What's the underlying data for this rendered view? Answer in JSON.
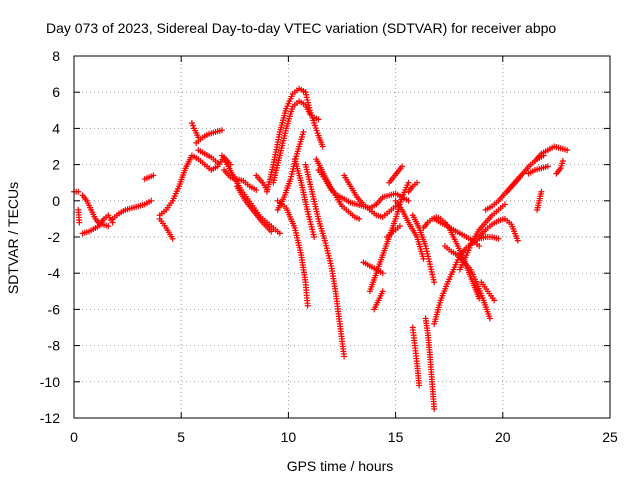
{
  "chart_data": {
    "type": "scatter",
    "title": "Day 073 of 2023, Sidereal Day-to-day VTEC variation (SDTVAR) for receiver abpo",
    "xlabel": "GPS time / hours",
    "ylabel": "SDTVAR / TECUs",
    "xlim": [
      0,
      25
    ],
    "ylim": [
      -12,
      8
    ],
    "x_ticks": [
      0,
      5,
      10,
      15,
      20,
      25
    ],
    "y_ticks": [
      -12,
      -10,
      -8,
      -6,
      -4,
      -2,
      0,
      2,
      4,
      6,
      8
    ],
    "grid": true,
    "marker": "+",
    "color": "#ff0000",
    "segments": [
      {
        "x": [
          0.0,
          0.2
        ],
        "y": [
          0.5,
          0.5
        ]
      },
      {
        "x": [
          0.2,
          0.25
        ],
        "y": [
          -0.5,
          -1.2
        ]
      },
      {
        "x": [
          0.4,
          0.6,
          0.8,
          1.0,
          1.2,
          1.4,
          1.6,
          1.8
        ],
        "y": [
          0.3,
          0.0,
          -0.5,
          -1.0,
          -1.3,
          -1.0,
          -0.8,
          -1.2
        ]
      },
      {
        "x": [
          0.4,
          0.7,
          1.0,
          1.3,
          1.6
        ],
        "y": [
          -1.8,
          -1.7,
          -1.5,
          -1.3,
          -1.4
        ]
      },
      {
        "x": [
          1.8,
          2.1,
          2.4,
          2.7,
          3.0,
          3.3,
          3.6
        ],
        "y": [
          -1.0,
          -0.7,
          -0.5,
          -0.4,
          -0.3,
          -0.2,
          0.0
        ]
      },
      {
        "x": [
          3.3,
          3.5,
          3.7
        ],
        "y": [
          1.2,
          1.3,
          1.4
        ]
      },
      {
        "x": [
          4.0,
          4.3,
          4.6
        ],
        "y": [
          -1.0,
          -1.5,
          -2.1
        ]
      },
      {
        "x": [
          4.0,
          4.3,
          4.6,
          4.9,
          5.2,
          5.5,
          5.8,
          6.1,
          6.4,
          6.7,
          7.0,
          7.3
        ],
        "y": [
          -0.8,
          -0.5,
          0.0,
          0.8,
          1.8,
          2.5,
          2.3,
          2.0,
          1.7,
          1.9,
          2.4,
          2.0
        ]
      },
      {
        "x": [
          5.5,
          5.6,
          5.8
        ],
        "y": [
          4.3,
          4.0,
          3.5
        ]
      },
      {
        "x": [
          5.7,
          6.0,
          6.3,
          6.6,
          6.9
        ],
        "y": [
          3.2,
          3.5,
          3.7,
          3.8,
          3.9
        ]
      },
      {
        "x": [
          5.8,
          6.1,
          6.4,
          6.7
        ],
        "y": [
          2.8,
          2.6,
          2.4,
          2.1
        ]
      },
      {
        "x": [
          6.9,
          7.2,
          7.5,
          7.8,
          8.1,
          8.4,
          8.7,
          9.0,
          9.3,
          9.6
        ],
        "y": [
          2.5,
          1.9,
          1.2,
          0.6,
          0.1,
          -0.4,
          -0.9,
          -1.2,
          -1.5,
          -1.8
        ]
      },
      {
        "x": [
          7.0,
          7.3,
          7.6,
          7.9,
          8.2,
          8.5
        ],
        "y": [
          1.7,
          1.3,
          1.2,
          1.1,
          0.8,
          0.6
        ]
      },
      {
        "x": [
          7.6,
          8.0,
          8.4,
          8.8,
          9.2
        ],
        "y": [
          0.8,
          0.0,
          -0.6,
          -1.2,
          -1.7
        ]
      },
      {
        "x": [
          8.5,
          8.8,
          9.0
        ],
        "y": [
          1.4,
          1.0,
          0.6
        ]
      },
      {
        "x": [
          9.0,
          9.3,
          9.6,
          9.9,
          10.2,
          10.5,
          10.8
        ],
        "y": [
          0.5,
          2.0,
          3.8,
          5.1,
          5.9,
          6.2,
          6.0
        ]
      },
      {
        "x": [
          9.3,
          9.6,
          9.9,
          10.2,
          10.5,
          10.8,
          11.0
        ],
        "y": [
          1.0,
          2.5,
          4.0,
          5.2,
          5.5,
          5.3,
          4.8
        ]
      },
      {
        "x": [
          9.5,
          9.8,
          10.1,
          10.4,
          10.7
        ],
        "y": [
          -0.5,
          0.2,
          1.2,
          2.6,
          3.8
        ]
      },
      {
        "x": [
          10.8,
          11.0,
          11.2,
          11.4,
          11.6
        ],
        "y": [
          6.0,
          5.0,
          4.3,
          3.6,
          3.0
        ]
      },
      {
        "x": [
          11.2,
          11.4
        ],
        "y": [
          4.6,
          4.5
        ]
      },
      {
        "x": [
          9.5,
          9.9,
          10.3,
          10.6,
          10.8,
          10.9
        ],
        "y": [
          0.0,
          -0.4,
          -1.5,
          -3.0,
          -4.5,
          -5.8
        ]
      },
      {
        "x": [
          10.3,
          10.6,
          10.9,
          11.2
        ],
        "y": [
          2.3,
          1.0,
          -0.6,
          -2.0
        ]
      },
      {
        "x": [
          10.8,
          11.1,
          11.4,
          11.7,
          12.0,
          12.2,
          12.4,
          12.6
        ],
        "y": [
          2.0,
          0.5,
          -1.0,
          -2.2,
          -3.6,
          -5.0,
          -6.8,
          -8.6
        ]
      },
      {
        "x": [
          11.3,
          11.6,
          11.9,
          12.2,
          12.5,
          12.8,
          13.1,
          13.3
        ],
        "y": [
          2.3,
          1.6,
          0.9,
          0.3,
          -0.3,
          -0.6,
          -0.9,
          -1.0
        ]
      },
      {
        "x": [
          11.4,
          11.7,
          12.0,
          12.3,
          12.6,
          12.9,
          13.2,
          13.5,
          13.8,
          14.1,
          14.4,
          14.7,
          15.0,
          15.3,
          15.6
        ],
        "y": [
          1.7,
          1.2,
          0.6,
          0.3,
          0.1,
          -0.1,
          -0.2,
          -0.3,
          -0.4,
          -0.2,
          0.2,
          0.3,
          0.4,
          0.2,
          0.0
        ]
      },
      {
        "x": [
          12.6,
          12.9,
          13.2,
          13.5,
          13.8,
          14.1,
          14.4,
          14.7,
          15.0
        ],
        "y": [
          1.4,
          0.8,
          0.2,
          -0.2,
          -0.5,
          -0.8,
          -0.9,
          -0.6,
          -0.3
        ]
      },
      {
        "x": [
          13.5,
          13.8,
          14.1,
          14.4
        ],
        "y": [
          -3.4,
          -3.6,
          -3.8,
          -4.0
        ]
      },
      {
        "x": [
          14.0,
          14.2,
          14.4
        ],
        "y": [
          -6.0,
          -5.5,
          -5.0
        ]
      },
      {
        "x": [
          13.8,
          14.1,
          14.4,
          14.7,
          15.0,
          15.3,
          15.6
        ],
        "y": [
          -5.0,
          -4.0,
          -3.0,
          -2.0,
          -1.0,
          0.2,
          1.0
        ]
      },
      {
        "x": [
          14.7,
          14.9,
          15.1,
          15.3
        ],
        "y": [
          1.0,
          1.3,
          1.6,
          1.9
        ]
      },
      {
        "x": [
          14.6,
          14.9,
          15.2
        ],
        "y": [
          -2.0,
          -1.7,
          -1.4
        ]
      },
      {
        "x": [
          15.6,
          15.8,
          16.0
        ],
        "y": [
          0.5,
          0.8,
          1.0
        ]
      },
      {
        "x": [
          15.0,
          15.3,
          15.6,
          16.0,
          16.3
        ],
        "y": [
          0.0,
          -0.5,
          -1.2,
          -2.0,
          -3.2
        ]
      },
      {
        "x": [
          15.8,
          16.1,
          16.4,
          16.6,
          16.8
        ],
        "y": [
          -0.8,
          -1.5,
          -2.5,
          -3.5,
          -4.5
        ]
      },
      {
        "x": [
          16.3,
          16.5,
          16.7,
          16.9,
          17.1,
          17.3,
          17.5,
          17.7,
          17.9,
          18.1,
          18.3,
          18.5,
          18.7,
          18.9
        ],
        "y": [
          -1.5,
          -1.2,
          -1.0,
          -0.9,
          -1.0,
          -1.2,
          -1.5,
          -2.0,
          -2.5,
          -3.0,
          -3.6,
          -4.2,
          -4.8,
          -5.4
        ]
      },
      {
        "x": [
          15.8,
          15.9,
          16.0,
          16.1
        ],
        "y": [
          -7.0,
          -8.0,
          -9.0,
          -10.2
        ]
      },
      {
        "x": [
          16.4,
          16.5,
          16.6,
          16.7,
          16.8
        ],
        "y": [
          -6.5,
          -7.3,
          -8.5,
          -10.0,
          -11.5
        ]
      },
      {
        "x": [
          16.8,
          17.1,
          17.4,
          17.7,
          18.0,
          18.3,
          18.6,
          18.9
        ],
        "y": [
          -1.0,
          -1.2,
          -1.4,
          -1.6,
          -1.8,
          -2.0,
          -2.2,
          -2.5
        ]
      },
      {
        "x": [
          17.3,
          17.6,
          17.9,
          18.2,
          18.5,
          18.8,
          19.1,
          19.4
        ],
        "y": [
          -2.5,
          -2.8,
          -3.0,
          -3.4,
          -3.8,
          -4.6,
          -5.5,
          -6.5
        ]
      },
      {
        "x": [
          16.8,
          17.1,
          17.4,
          17.7,
          18.0,
          18.3,
          18.6,
          18.9,
          19.2,
          19.5,
          19.8
        ],
        "y": [
          -6.8,
          -5.5,
          -4.6,
          -3.8,
          -3.0,
          -2.6,
          -2.3,
          -2.1,
          -2.0,
          -2.0,
          -2.1
        ]
      },
      {
        "x": [
          18.0,
          18.3,
          18.6,
          18.9,
          19.2,
          19.5,
          19.8,
          20.1
        ],
        "y": [
          -3.8,
          -3.0,
          -2.2,
          -1.6,
          -1.2,
          -0.8,
          -0.5,
          -0.2
        ]
      },
      {
        "x": [
          19.0,
          19.3,
          19.6
        ],
        "y": [
          -4.5,
          -5.0,
          -5.5
        ]
      },
      {
        "x": [
          18.9,
          19.2,
          19.5,
          19.8,
          20.1,
          20.4,
          20.7
        ],
        "y": [
          -2.0,
          -1.6,
          -1.3,
          -1.1,
          -1.0,
          -1.3,
          -2.2
        ]
      },
      {
        "x": [
          19.2,
          19.5,
          19.8,
          20.1,
          20.4,
          20.7,
          21.0,
          21.3,
          21.6,
          21.9
        ],
        "y": [
          -0.5,
          -0.3,
          0.0,
          0.4,
          0.8,
          1.2,
          1.6,
          2.0,
          2.3,
          2.5
        ]
      },
      {
        "x": [
          20.2,
          20.5,
          20.8
        ],
        "y": [
          0.5,
          0.9,
          1.3
        ]
      },
      {
        "x": [
          21.2,
          21.5,
          21.8,
          22.1
        ],
        "y": [
          1.5,
          1.7,
          1.8,
          1.9
        ]
      },
      {
        "x": [
          21.5,
          21.8,
          22.1,
          22.4,
          22.7,
          23.0
        ],
        "y": [
          2.2,
          2.6,
          2.8,
          3.0,
          2.9,
          2.8
        ]
      },
      {
        "x": [
          21.6,
          21.7,
          21.8
        ],
        "y": [
          -0.5,
          0.0,
          0.5
        ]
      },
      {
        "x": [
          22.5,
          22.7,
          22.8
        ],
        "y": [
          1.5,
          1.8,
          2.2
        ]
      }
    ]
  }
}
